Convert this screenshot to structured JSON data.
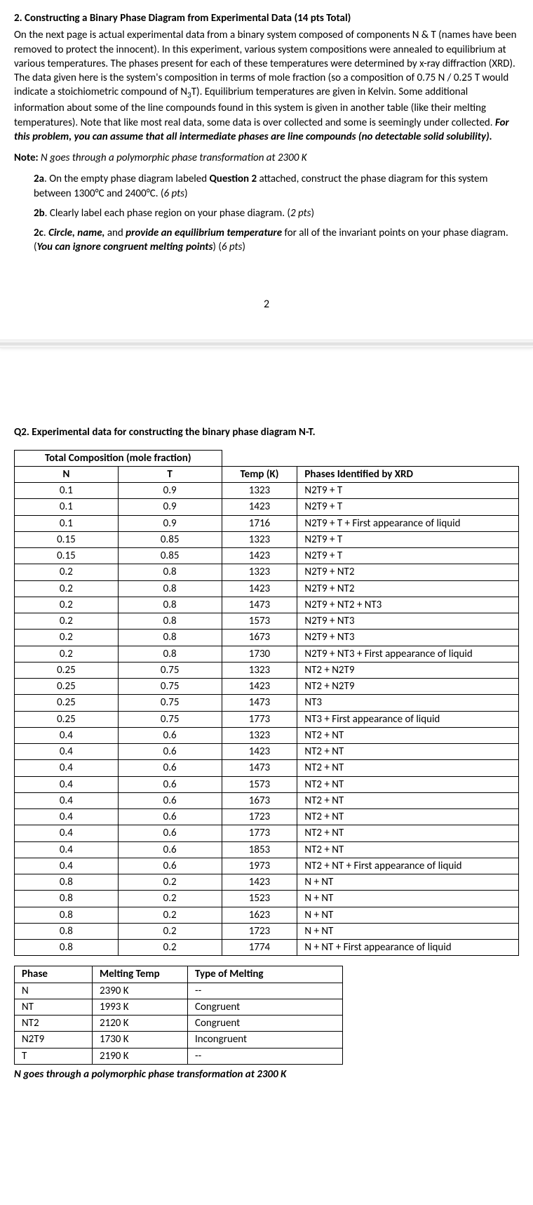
{
  "heading": "2. Constructing a Binary Phase Diagram from Experimental Data (14 pts Total)",
  "intro1": "On the next page is actual experimental data from a binary system composed of components N & T (names have been removed to protect the innocent). In this experiment, various system compositions were annealed to equilibrium at various temperatures. The phases present for each of these temperatures were determined by x-ray diffraction (XRD). The data given here is the system's composition in terms of mole fraction (so a composition of 0.75 N / 0.25 T would indicate a stoichiometric compound of N",
  "intro1_sub": "3",
  "intro1_end": "T). Equilibrium temperatures are given in Kelvin. Some additional information about some of the line compounds found in this system is given in another table (like their melting temperatures). Note that like most real data, some data is over collected and some is seemingly under collected.",
  "intro1_bolditalic": " For this problem, you can assume that all intermediate phases are line compounds (no detectable solid solubility).",
  "note_label": "Note:",
  "note_text": " N goes through a polymorphic phase transformation at 2300 K",
  "sub2a_label": "2a",
  "sub2a_pre": ". On the empty phase diagram labeled ",
  "sub2a_bold": "Question 2",
  "sub2a_post": " attached, construct the phase diagram for this system between 1300°C and 2400°C. (",
  "sub2a_pts": "6 pts",
  "sub2a_close": ")",
  "sub2b_label": "2b",
  "sub2b_text": ". Clearly label each phase region on your phase diagram. (",
  "sub2b_pts": "2 pts",
  "sub2b_close": ")",
  "sub2c_label": "2c",
  "sub2c_a": ". ",
  "sub2c_b": "Circle, name,",
  "sub2c_c": " and ",
  "sub2c_d": "provide an equilibrium temperature",
  "sub2c_e": " for all of the invariant points on your phase diagram. (",
  "sub2c_f": "You can ignore congruent melting points",
  "sub2c_g": ") (",
  "sub2c_pts": "6 pts",
  "sub2c_close": ")",
  "page_num": "2",
  "q2_heading": "Q2. Experimental data for constructing the binary phase diagram N-T.",
  "t1": {
    "comp_header": "Total Composition (mole fraction)",
    "col_n": "N",
    "col_t": "T",
    "col_temp": "Temp (K)",
    "col_phases": "Phases Identified by XRD",
    "rows": [
      [
        "0.1",
        "0.9",
        "1323",
        "N2T9 + T"
      ],
      [
        "0.1",
        "0.9",
        "1423",
        "N2T9 + T"
      ],
      [
        "0.1",
        "0.9",
        "1716",
        "N2T9 + T + First appearance of liquid"
      ],
      [
        "0.15",
        "0.85",
        "1323",
        "N2T9 + T"
      ],
      [
        "0.15",
        "0.85",
        "1423",
        "N2T9 + T"
      ],
      [
        "0.2",
        "0.8",
        "1323",
        "N2T9 + NT2"
      ],
      [
        "0.2",
        "0.8",
        "1423",
        "N2T9 + NT2"
      ],
      [
        "0.2",
        "0.8",
        "1473",
        "N2T9 + NT2 + NT3"
      ],
      [
        "0.2",
        "0.8",
        "1573",
        "N2T9 + NT3"
      ],
      [
        "0.2",
        "0.8",
        "1673",
        "N2T9 + NT3"
      ],
      [
        "0.2",
        "0.8",
        "1730",
        "N2T9 + NT3 + First appearance of liquid"
      ],
      [
        "0.25",
        "0.75",
        "1323",
        "NT2 + N2T9"
      ],
      [
        "0.25",
        "0.75",
        "1423",
        "NT2 + N2T9"
      ],
      [
        "0.25",
        "0.75",
        "1473",
        "NT3"
      ],
      [
        "0.25",
        "0.75",
        "1773",
        "NT3 + First appearance of liquid"
      ],
      [
        "0.4",
        "0.6",
        "1323",
        "NT2 + NT"
      ],
      [
        "0.4",
        "0.6",
        "1423",
        "NT2 + NT"
      ],
      [
        "0.4",
        "0.6",
        "1473",
        "NT2 + NT"
      ],
      [
        "0.4",
        "0.6",
        "1573",
        "NT2 + NT"
      ],
      [
        "0.4",
        "0.6",
        "1673",
        "NT2 + NT"
      ],
      [
        "0.4",
        "0.6",
        "1723",
        "NT2 + NT"
      ],
      [
        "0.4",
        "0.6",
        "1773",
        "NT2 + NT"
      ],
      [
        "0.4",
        "0.6",
        "1853",
        "NT2 + NT"
      ],
      [
        "0.4",
        "0.6",
        "1973",
        "NT2 + NT + First appearance of liquid"
      ],
      [
        "0.8",
        "0.2",
        "1423",
        "N + NT"
      ],
      [
        "0.8",
        "0.2",
        "1523",
        "N + NT"
      ],
      [
        "0.8",
        "0.2",
        "1623",
        "N + NT"
      ],
      [
        "0.8",
        "0.2",
        "1723",
        "N + NT"
      ],
      [
        "0.8",
        "0.2",
        "1774",
        "N + NT + First appearance of liquid"
      ]
    ]
  },
  "t2": {
    "col_phase": "Phase",
    "col_mt": "Melting Temp",
    "col_type": "Type of Melting",
    "rows": [
      [
        "N",
        "2390 K",
        "--"
      ],
      [
        "NT",
        "1993 K",
        "Congruent"
      ],
      [
        "NT2",
        "2120 K",
        "Congruent"
      ],
      [
        "N2T9",
        "1730 K",
        "Incongruent"
      ],
      [
        "T",
        "2190 K",
        "--"
      ]
    ]
  },
  "footnote": "N goes through a polymorphic phase transformation at 2300 K"
}
